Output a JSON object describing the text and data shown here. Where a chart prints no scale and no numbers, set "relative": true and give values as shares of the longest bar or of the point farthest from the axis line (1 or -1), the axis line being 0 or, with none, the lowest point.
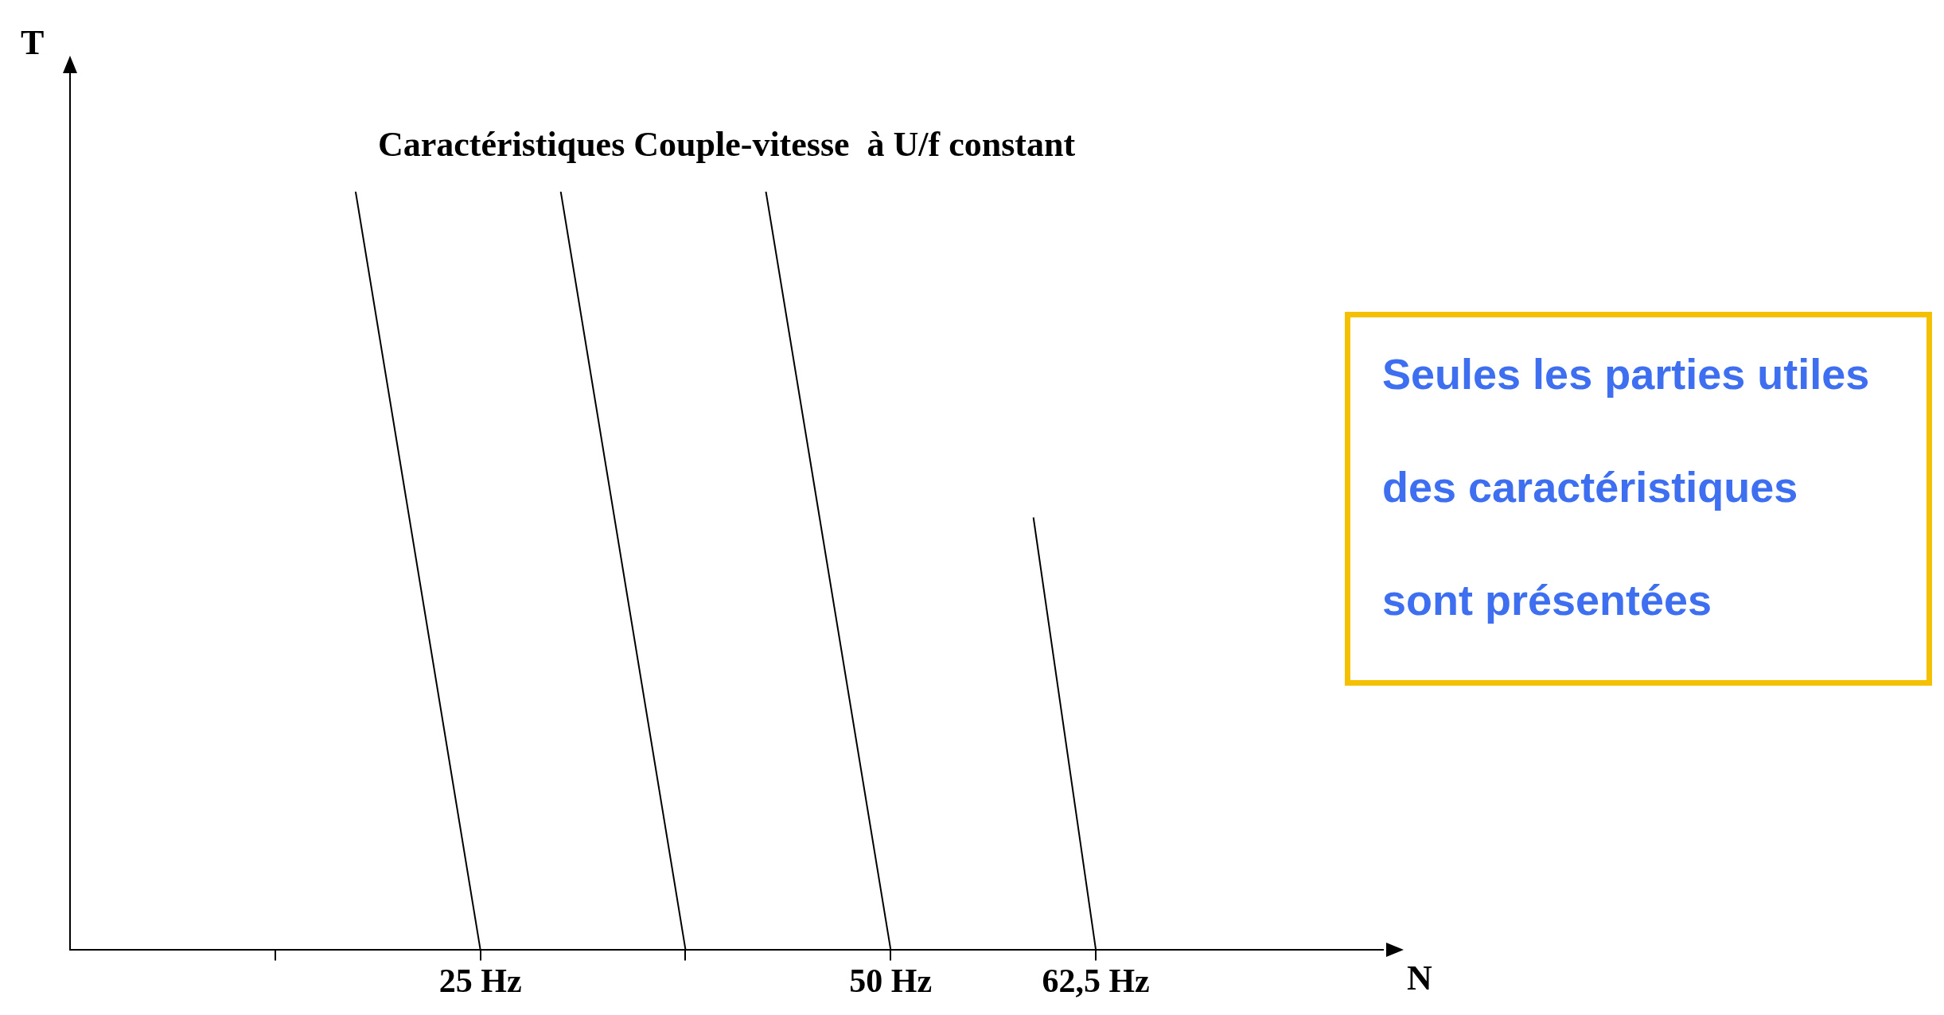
{
  "chart_data": {
    "type": "line",
    "title": "Caractéristiques Couple-vitesse  à U/f constant",
    "xlabel": "N",
    "ylabel": "T",
    "relative": true,
    "marker": "none",
    "line_style": "solid",
    "xlim": [
      0,
      80
    ],
    "xticks": [
      {
        "value": 12.5,
        "label": null
      },
      {
        "value": 25,
        "label": "25 Hz"
      },
      {
        "value": 37.5,
        "label": null
      },
      {
        "value": 50,
        "label": "50 Hz"
      },
      {
        "value": 62.5,
        "label": "62,5 Hz"
      }
    ],
    "series": [
      {
        "color": "#000000",
        "x": [
          17.4,
          25
        ],
        "values": [
          1,
          0
        ]
      },
      {
        "color": "#000000",
        "x": [
          29.9,
          37.5
        ],
        "values": [
          1,
          0
        ]
      },
      {
        "color": "#000000",
        "x": [
          42.4,
          50
        ],
        "values": [
          1,
          0
        ]
      },
      {
        "color": "#000000",
        "x": [
          58.7,
          62.5
        ],
        "values": [
          0.57,
          0
        ]
      }
    ],
    "annotations": [
      "Seules les parties utiles des caractéristiques sont présentées"
    ]
  }
}
